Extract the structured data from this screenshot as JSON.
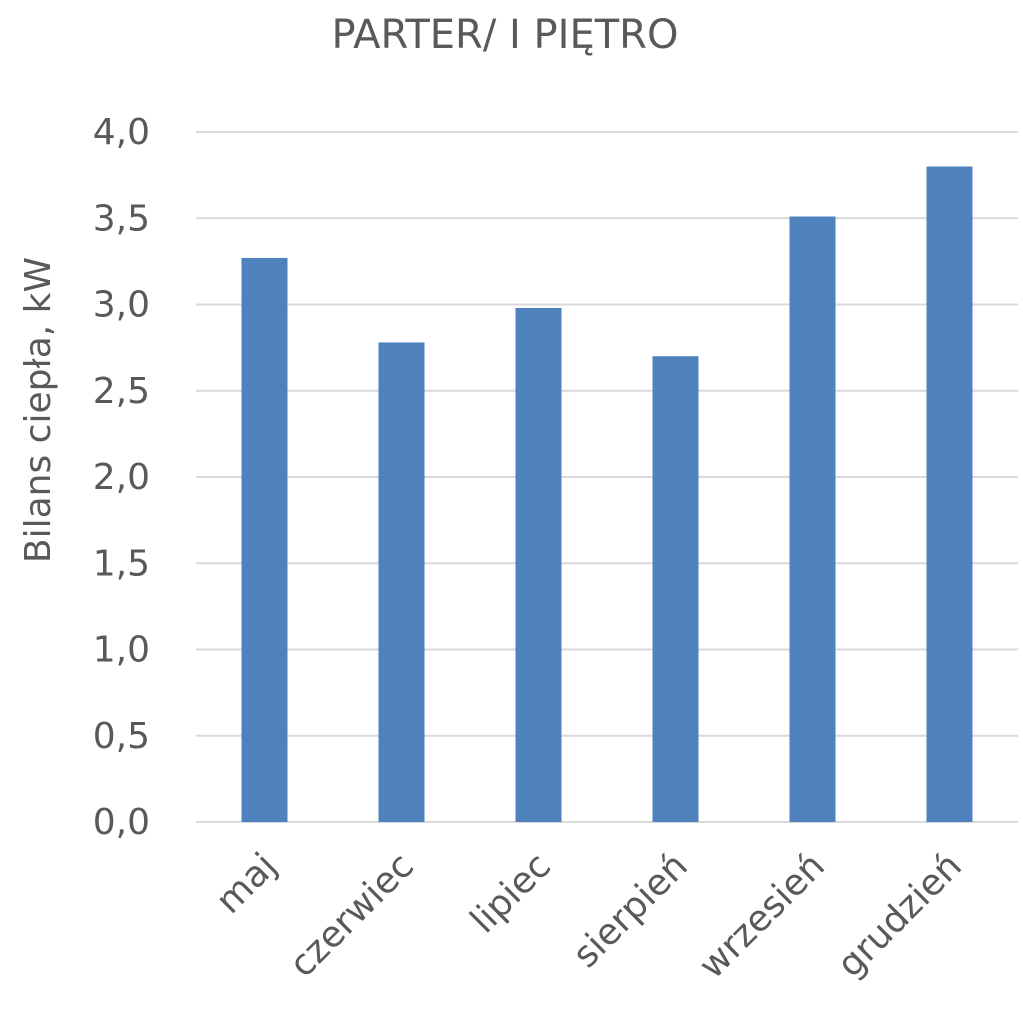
{
  "chart_data": {
    "type": "bar",
    "title": "PARTER/ I PIĘTRO",
    "xlabel": "",
    "ylabel": "Bilans ciepła, kW",
    "categories": [
      "maj",
      "czerwiec",
      "lipiec",
      "sierpień",
      "wrzesień",
      "grudzień"
    ],
    "series": [
      {
        "values": [
          3.27,
          2.78,
          2.98,
          2.7,
          3.51,
          3.8
        ]
      }
    ],
    "ylim": [
      0,
      4.0
    ],
    "yticks": [
      "0,0",
      "0,5",
      "1,0",
      "1,5",
      "2,0",
      "2,5",
      "3,0",
      "3,5",
      "4,0"
    ],
    "grid": true,
    "legend": "none",
    "colors": {
      "bar": "#4f81bd",
      "grid": "#d9d9d9",
      "text": "#595959"
    }
  }
}
